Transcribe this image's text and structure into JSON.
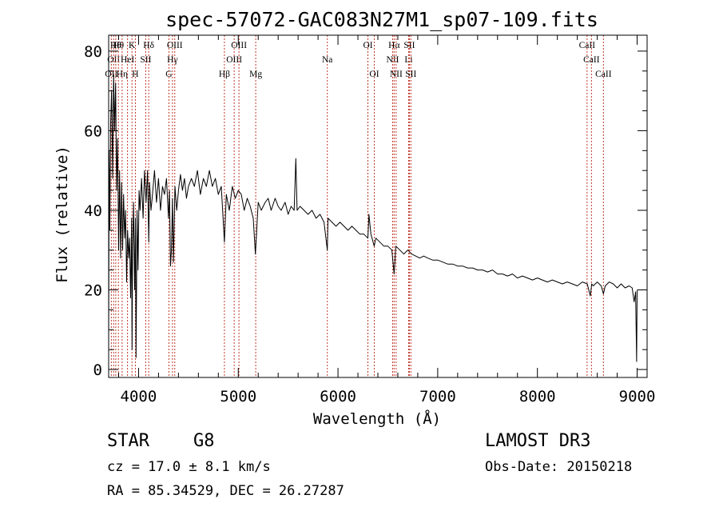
{
  "chart_data": {
    "type": "line",
    "title": "spec-57072-GAC083N27M1_sp07-109.fits",
    "xlabel": "Wavelength (Å)",
    "ylabel": "Flux (relative)",
    "xlim": [
      3700,
      9100
    ],
    "ylim": [
      -2,
      84
    ],
    "xticks": [
      4000,
      5000,
      6000,
      7000,
      8000,
      9000
    ],
    "xtick_labels": [
      "4000",
      "5000",
      "6000",
      "7000",
      "8000",
      "9000"
    ],
    "yticks": [
      0,
      20,
      40,
      60,
      80
    ],
    "ytick_labels": [
      "0",
      "20",
      "40",
      "60",
      "80"
    ],
    "grid": false,
    "series": [
      {
        "name": "spectrum",
        "x": [
          3700,
          3705,
          3712,
          3720,
          3730,
          3740,
          3750,
          3760,
          3770,
          3780,
          3790,
          3800,
          3810,
          3820,
          3830,
          3840,
          3850,
          3860,
          3870,
          3880,
          3890,
          3900,
          3910,
          3920,
          3930,
          3935,
          3940,
          3950,
          3960,
          3968,
          3975,
          3985,
          3995,
          4005,
          4015,
          4030,
          4045,
          4060,
          4075,
          4090,
          4102,
          4110,
          4125,
          4140,
          4160,
          4180,
          4200,
          4220,
          4240,
          4260,
          4280,
          4300,
          4310,
          4320,
          4330,
          4340,
          4350,
          4365,
          4383,
          4400,
          4420,
          4440,
          4460,
          4480,
          4500,
          4530,
          4560,
          4590,
          4620,
          4650,
          4680,
          4710,
          4740,
          4770,
          4800,
          4830,
          4861,
          4880,
          4910,
          4940,
          4970,
          5000,
          5030,
          5060,
          5090,
          5120,
          5150,
          5172,
          5183,
          5200,
          5230,
          5270,
          5300,
          5330,
          5370,
          5400,
          5430,
          5470,
          5500,
          5530,
          5560,
          5577,
          5590,
          5620,
          5660,
          5700,
          5740,
          5780,
          5820,
          5860,
          5893,
          5900,
          5940,
          5980,
          6020,
          6060,
          6100,
          6140,
          6180,
          6220,
          6260,
          6300,
          6310,
          6330,
          6363,
          6380,
          6420,
          6460,
          6500,
          6540,
          6563,
          6580,
          6620,
          6660,
          6700,
          6740,
          6780,
          6820,
          6860,
          6900,
          6950,
          7000,
          7050,
          7100,
          7150,
          7200,
          7250,
          7300,
          7350,
          7400,
          7450,
          7500,
          7550,
          7600,
          7650,
          7700,
          7750,
          7800,
          7850,
          7900,
          7950,
          8000,
          8050,
          8100,
          8150,
          8200,
          8250,
          8300,
          8350,
          8400,
          8450,
          8500,
          8530,
          8545,
          8560,
          8600,
          8640,
          8662,
          8680,
          8720,
          8760,
          8800,
          8840,
          8880,
          8920,
          8950,
          8970,
          8985,
          8995,
          9000
        ],
        "y": [
          5,
          55,
          35,
          62,
          70,
          48,
          74,
          60,
          72,
          45,
          58,
          30,
          50,
          28,
          47,
          30,
          44,
          33,
          40,
          22,
          35,
          28,
          33,
          18,
          38,
          5,
          30,
          42,
          20,
          38,
          3,
          40,
          25,
          45,
          40,
          48,
          38,
          50,
          42,
          50,
          32,
          47,
          40,
          44,
          50,
          42,
          48,
          40,
          46,
          44,
          48,
          38,
          45,
          26,
          30,
          43,
          27,
          46,
          40,
          45,
          49,
          45,
          48,
          43,
          46,
          48,
          46,
          50,
          44,
          48,
          46,
          50,
          46,
          48,
          44,
          46,
          32,
          44,
          40,
          46,
          43,
          45,
          44,
          40,
          43,
          41,
          38,
          29,
          34,
          42,
          40,
          42,
          43,
          40,
          43,
          41,
          40,
          42,
          39,
          41,
          40,
          53,
          40,
          41,
          40,
          39,
          40,
          38,
          39,
          37,
          30,
          38,
          37,
          36,
          37,
          36,
          35,
          36,
          35,
          34,
          34,
          33,
          39,
          34,
          31,
          33,
          32,
          31,
          31,
          30,
          24,
          31,
          30,
          29,
          30,
          29,
          28.5,
          28,
          28.5,
          28,
          27.5,
          27.5,
          27,
          26.5,
          26.5,
          26,
          26,
          25.5,
          25.5,
          25,
          25,
          24.5,
          25,
          24,
          24,
          23.5,
          24,
          23,
          23.5,
          23,
          22.5,
          23,
          22.5,
          22,
          22.5,
          22,
          21.5,
          22,
          21.5,
          21,
          22,
          21.5,
          18.5,
          21.5,
          21,
          22,
          21,
          19,
          21,
          22,
          21.5,
          20.5,
          21.5,
          20.5,
          21,
          20.5,
          17,
          19.5,
          2,
          20
        ]
      }
    ],
    "spectral_lines": [
      {
        "wavelength": 3727,
        "label": "OII",
        "row": 2
      },
      {
        "wavelength": 3750,
        "label": "OII",
        "row": 1
      },
      {
        "wavelength": 3771,
        "label": "Hθ",
        "row": 0
      },
      {
        "wavelength": 3798,
        "label": "Hθ",
        "row": 0
      },
      {
        "wavelength": 3835,
        "label": "Hη",
        "row": 2
      },
      {
        "wavelength": 3889,
        "label": "HeI",
        "row": 1
      },
      {
        "wavelength": 3934,
        "label": "K",
        "row": 0
      },
      {
        "wavelength": 3968,
        "label": "H",
        "row": 2
      },
      {
        "wavelength": 4072,
        "label": "SII",
        "row": 1
      },
      {
        "wavelength": 4102,
        "label": "Hδ",
        "row": 0
      },
      {
        "wavelength": 4304,
        "label": "G",
        "row": 2
      },
      {
        "wavelength": 4340,
        "label": "Hγ",
        "row": 1
      },
      {
        "wavelength": 4363,
        "label": "OIII",
        "row": 0
      },
      {
        "wavelength": 4861,
        "label": "Hβ",
        "row": 2
      },
      {
        "wavelength": 4959,
        "label": "OIII",
        "row": 1
      },
      {
        "wavelength": 5007,
        "label": "OIII",
        "row": 0
      },
      {
        "wavelength": 5175,
        "label": "Mg",
        "row": 2
      },
      {
        "wavelength": 5893,
        "label": "Na",
        "row": 1
      },
      {
        "wavelength": 6300,
        "label": "OI",
        "row": 0
      },
      {
        "wavelength": 6364,
        "label": "OI",
        "row": 2
      },
      {
        "wavelength": 6548,
        "label": "NII",
        "row": 1
      },
      {
        "wavelength": 6563,
        "label": "Hα",
        "row": 0
      },
      {
        "wavelength": 6583,
        "label": "NII",
        "row": 2
      },
      {
        "wavelength": 6708,
        "label": "Li",
        "row": 1
      },
      {
        "wavelength": 6716,
        "label": "SII",
        "row": 0
      },
      {
        "wavelength": 6731,
        "label": "SII",
        "row": 2
      },
      {
        "wavelength": 8498,
        "label": "CaII",
        "row": 0
      },
      {
        "wavelength": 8542,
        "label": "CaII",
        "row": 1
      },
      {
        "wavelength": 8662,
        "label": "CaII",
        "row": 2
      }
    ],
    "colors": {
      "spectrum": "#000000",
      "line_marker": "#c0392b",
      "axes": "#000000"
    }
  },
  "info": {
    "object_class": "STAR",
    "subclass": "G8",
    "survey": "LAMOST DR3",
    "redshift": "cz = 17.0 ± 8.1 km/s",
    "obs_date": "Obs-Date: 20150218",
    "coords": "RA =  85.34529, DEC =  26.27287"
  }
}
